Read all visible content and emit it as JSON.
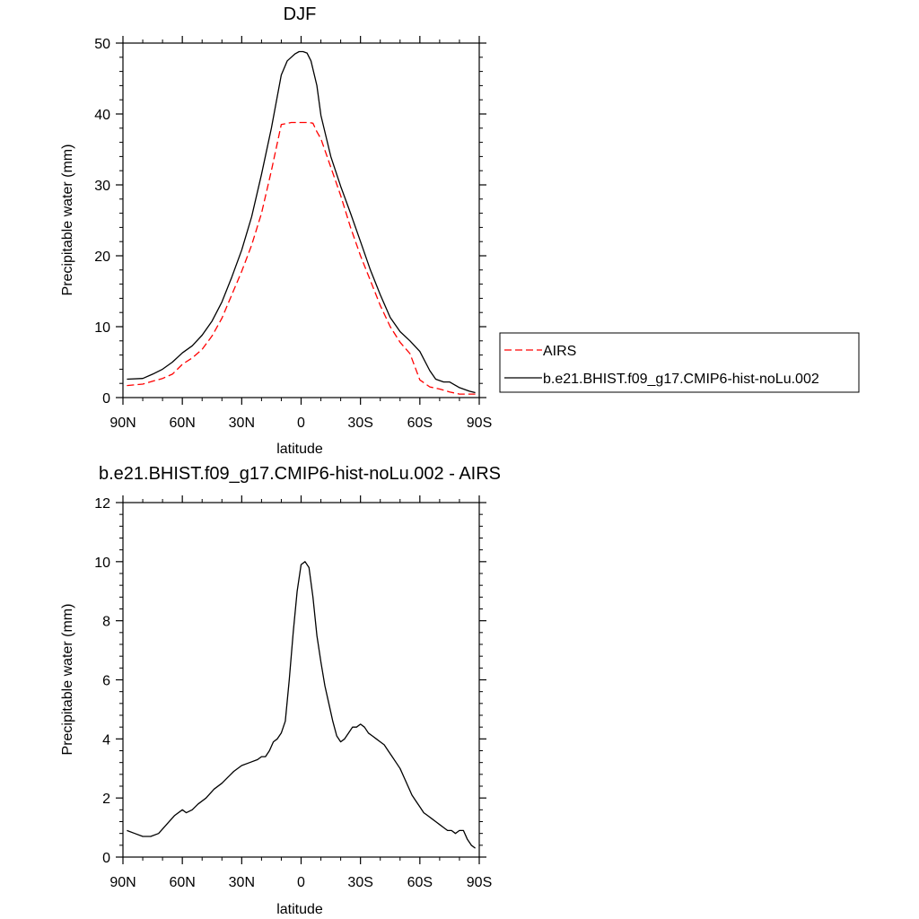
{
  "chart_data": [
    {
      "type": "line",
      "title": "DJF",
      "xlabel": "latitude",
      "ylabel": "Precipitable water (mm)",
      "xlim": [
        -90,
        90
      ],
      "ylim": [
        0,
        50
      ],
      "x_ticks": [
        {
          "value": -90,
          "label": "90N"
        },
        {
          "value": -60,
          "label": "60N"
        },
        {
          "value": -30,
          "label": "30N"
        },
        {
          "value": 0,
          "label": "0"
        },
        {
          "value": 30,
          "label": "30S"
        },
        {
          "value": 60,
          "label": "60S"
        },
        {
          "value": 90,
          "label": "90S"
        }
      ],
      "y_ticks": [
        0,
        10,
        20,
        30,
        40,
        50
      ],
      "grid": false,
      "legend": "right",
      "series": [
        {
          "name": "AIRS",
          "color": "#ff0000",
          "dash": true,
          "x": [
            -88,
            -80,
            -75,
            -70,
            -65,
            -60,
            -55,
            -50,
            -45,
            -40,
            -35,
            -30,
            -25,
            -20,
            -15,
            -10,
            -5,
            -3,
            -1,
            0,
            2,
            4,
            6,
            8,
            10,
            15,
            20,
            25,
            30,
            35,
            40,
            45,
            50,
            55,
            60,
            65,
            70,
            75,
            80,
            85,
            88
          ],
          "y": [
            1.7,
            1.9,
            2.3,
            2.7,
            3.3,
            4.7,
            5.6,
            6.8,
            8.7,
            11.2,
            14.5,
            17.8,
            21.5,
            26.0,
            32.0,
            38.5,
            38.8,
            38.8,
            38.8,
            38.8,
            38.8,
            38.8,
            38.7,
            37.5,
            36.5,
            32.5,
            28.5,
            24.0,
            20.0,
            16.5,
            13.0,
            10.0,
            7.8,
            6.2,
            2.5,
            1.5,
            1.2,
            0.8,
            0.5,
            0.5,
            0.5
          ]
        },
        {
          "name": "b.e21.BHIST.f09_g17.CMIP6-hist-noLu.002",
          "color": "#000000",
          "dash": false,
          "x": [
            -88,
            -80,
            -75,
            -70,
            -65,
            -60,
            -55,
            -50,
            -45,
            -40,
            -35,
            -30,
            -25,
            -20,
            -15,
            -10,
            -7,
            -5,
            -3,
            -1,
            1,
            3,
            5,
            8,
            10,
            15,
            20,
            25,
            30,
            35,
            40,
            45,
            50,
            55,
            60,
            65,
            68,
            72,
            75,
            80,
            85,
            88
          ],
          "y": [
            2.6,
            2.7,
            3.3,
            4.0,
            5.0,
            6.3,
            7.3,
            8.8,
            10.8,
            13.5,
            17.0,
            20.8,
            25.5,
            31.5,
            38.0,
            45.5,
            47.5,
            48.0,
            48.5,
            48.8,
            48.8,
            48.6,
            47.5,
            44.0,
            39.8,
            34.0,
            29.8,
            26.0,
            22.0,
            18.0,
            14.5,
            11.3,
            9.3,
            8.0,
            6.5,
            3.8,
            2.6,
            2.2,
            2.2,
            1.4,
            0.9,
            0.7
          ]
        }
      ]
    },
    {
      "type": "line",
      "title": "b.e21.BHIST.f09_g17.CMIP6-hist-noLu.002 - AIRS",
      "xlabel": "latitude",
      "ylabel": "Precipitable water (mm)",
      "xlim": [
        -90,
        90
      ],
      "ylim": [
        0,
        12
      ],
      "x_ticks": [
        {
          "value": -90,
          "label": "90N"
        },
        {
          "value": -60,
          "label": "60N"
        },
        {
          "value": -30,
          "label": "30N"
        },
        {
          "value": 0,
          "label": "0"
        },
        {
          "value": 30,
          "label": "30S"
        },
        {
          "value": 60,
          "label": "60S"
        },
        {
          "value": 90,
          "label": "90S"
        }
      ],
      "y_ticks": [
        0,
        2,
        4,
        6,
        8,
        10,
        12
      ],
      "grid": false,
      "series": [
        {
          "color": "#000000",
          "x": [
            -88,
            -84,
            -80,
            -76,
            -72,
            -68,
            -64,
            -60,
            -58,
            -55,
            -52,
            -48,
            -44,
            -40,
            -37,
            -34,
            -30,
            -26,
            -22,
            -20,
            -18,
            -16,
            -14,
            -12,
            -10,
            -8,
            -6,
            -4,
            -2,
            0,
            2,
            4,
            6,
            8,
            10,
            12,
            14,
            16,
            18,
            20,
            22,
            24,
            26,
            28,
            30,
            32,
            34,
            36,
            38,
            40,
            42,
            44,
            46,
            48,
            50,
            52,
            54,
            56,
            58,
            60,
            62,
            64,
            66,
            68,
            70,
            72,
            74,
            76,
            78,
            80,
            82,
            84,
            86,
            88
          ],
          "y": [
            0.9,
            0.8,
            0.7,
            0.7,
            0.8,
            1.1,
            1.4,
            1.6,
            1.5,
            1.6,
            1.8,
            2.0,
            2.3,
            2.5,
            2.7,
            2.9,
            3.1,
            3.2,
            3.3,
            3.4,
            3.4,
            3.6,
            3.9,
            4.0,
            4.2,
            4.6,
            6.0,
            7.6,
            9.0,
            9.9,
            10.0,
            9.8,
            8.8,
            7.5,
            6.6,
            5.8,
            5.2,
            4.6,
            4.1,
            3.9,
            4.0,
            4.2,
            4.4,
            4.4,
            4.5,
            4.4,
            4.2,
            4.1,
            4.0,
            3.9,
            3.8,
            3.6,
            3.4,
            3.2,
            3.0,
            2.7,
            2.4,
            2.1,
            1.9,
            1.7,
            1.5,
            1.4,
            1.3,
            1.2,
            1.1,
            1.0,
            0.9,
            0.9,
            0.8,
            0.9,
            0.9,
            0.6,
            0.4,
            0.3
          ]
        }
      ]
    }
  ]
}
